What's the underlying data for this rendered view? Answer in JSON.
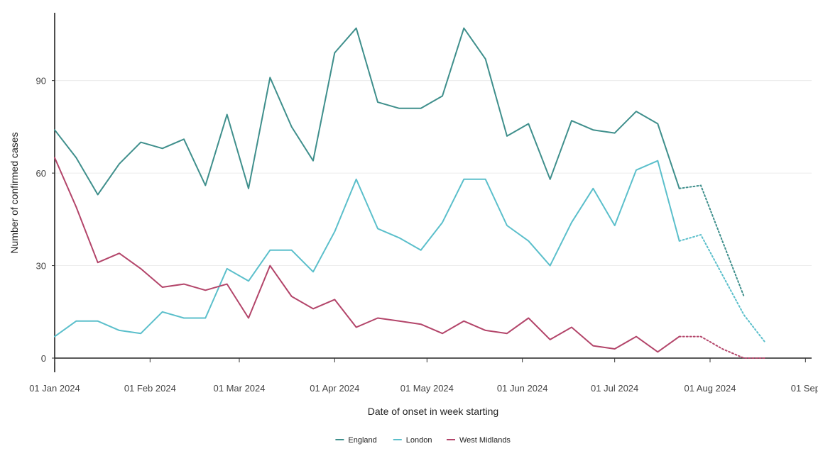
{
  "chart_data": {
    "type": "line",
    "xlabel": "Date of onset in week starting",
    "ylabel": "Number of confirmed cases",
    "x_ticks": [
      "01 Jan 2024",
      "01 Feb 2024",
      "01 Mar 2024",
      "01 Apr 2024",
      "01 May 2024",
      "01 Jun 2024",
      "01 Jul 2024",
      "01 Aug 2024",
      "01 Sep"
    ],
    "x_tick_days": [
      0,
      31,
      60,
      91,
      121,
      152,
      182,
      213,
      244
    ],
    "y_ticks": [
      "0",
      "30",
      "60",
      "90"
    ],
    "y_tick_values": [
      0,
      30,
      60,
      90
    ],
    "ylim": [
      0,
      112
    ],
    "xlim": [
      "2024-01-01",
      "2024-09-03"
    ],
    "grid": "horizontal",
    "legend_position": "bottom",
    "x": [
      "2024-01-01",
      "2024-01-08",
      "2024-01-15",
      "2024-01-22",
      "2024-01-29",
      "2024-02-05",
      "2024-02-12",
      "2024-02-19",
      "2024-02-26",
      "2024-03-04",
      "2024-03-11",
      "2024-03-18",
      "2024-03-25",
      "2024-04-01",
      "2024-04-08",
      "2024-04-15",
      "2024-04-22",
      "2024-04-29",
      "2024-05-06",
      "2024-05-13",
      "2024-05-20",
      "2024-05-27",
      "2024-06-03",
      "2024-06-10",
      "2024-06-17",
      "2024-06-24",
      "2024-07-01",
      "2024-07-08",
      "2024-07-15",
      "2024-07-22"
    ],
    "x_provisional": [
      "2024-07-22",
      "2024-07-29",
      "2024-08-05",
      "2024-08-12",
      "2024-08-19"
    ],
    "series": [
      {
        "name": "England",
        "color": "#3f8f8c",
        "values": [
          74,
          65,
          53,
          63,
          70,
          68,
          71,
          56,
          79,
          55,
          91,
          75,
          64,
          99,
          107,
          83,
          81,
          81,
          85,
          107,
          97,
          72,
          76,
          58,
          77,
          74,
          73,
          80,
          76,
          55
        ],
        "provisional_values": [
          55,
          56,
          38,
          20,
          null
        ]
      },
      {
        "name": "London",
        "color": "#5bbfcb",
        "values": [
          7,
          12,
          12,
          9,
          8,
          15,
          13,
          13,
          29,
          25,
          35,
          35,
          28,
          41,
          58,
          42,
          39,
          35,
          44,
          58,
          58,
          43,
          38,
          30,
          44,
          55,
          43,
          61,
          64,
          38
        ],
        "provisional_values": [
          38,
          40,
          27,
          14,
          5
        ]
      },
      {
        "name": "West Midlands",
        "color": "#b3456a",
        "values": [
          65,
          49,
          31,
          34,
          29,
          23,
          24,
          22,
          24,
          13,
          30,
          20,
          16,
          19,
          10,
          13,
          12,
          11,
          8,
          12,
          9,
          8,
          13,
          6,
          10,
          4,
          3,
          7,
          2,
          7
        ],
        "provisional_values": [
          7,
          7,
          3,
          0,
          0
        ]
      }
    ]
  }
}
